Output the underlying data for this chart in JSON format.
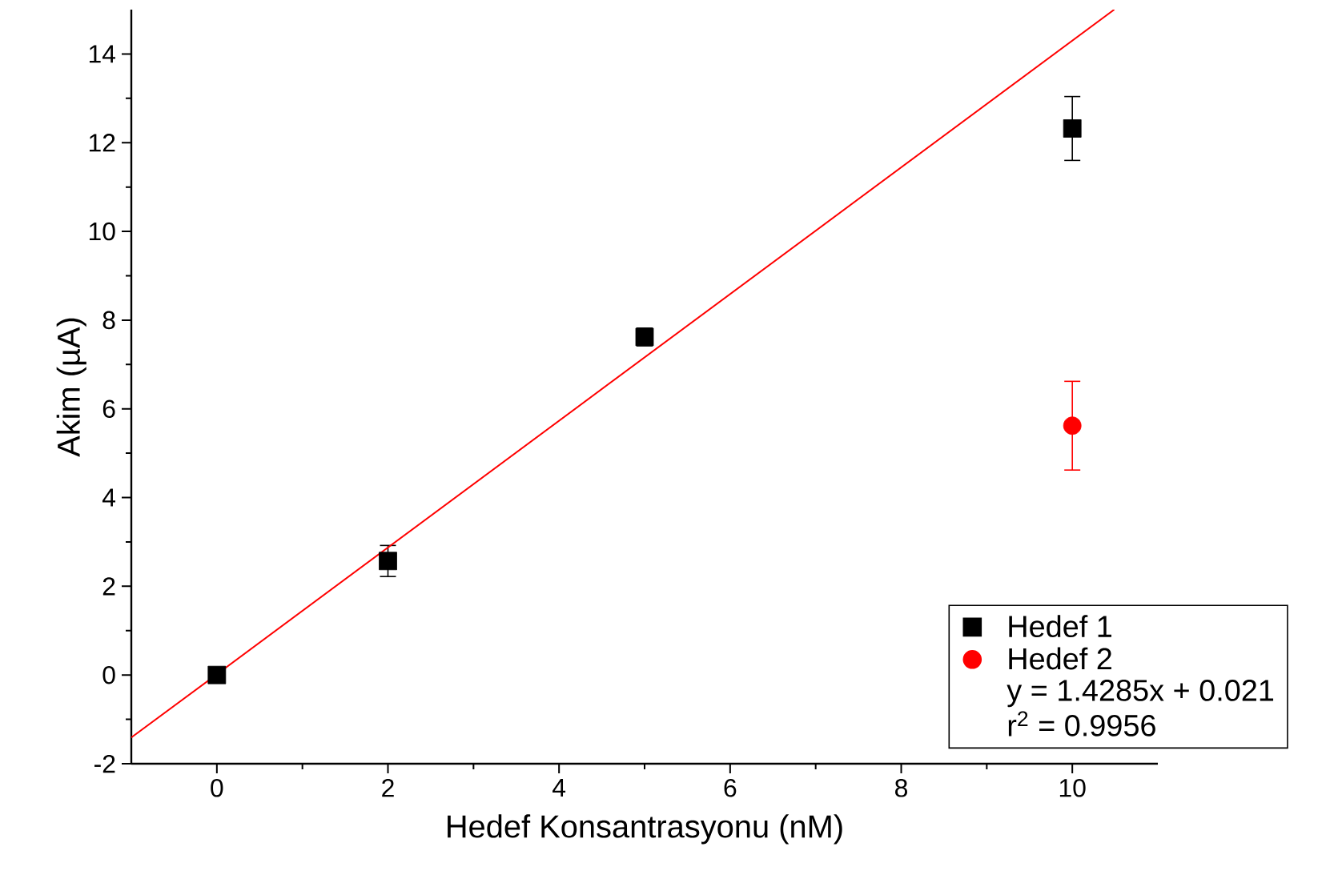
{
  "chart_data": {
    "type": "scatter",
    "xlabel": "Hedef Konsantrasyonu (nM)",
    "ylabel": "Akim (µA)",
    "xlim": [
      -1,
      11
    ],
    "ylim": [
      -2,
      15
    ],
    "xticks": [
      0,
      2,
      4,
      6,
      8,
      10
    ],
    "yticks": [
      -2,
      0,
      2,
      4,
      6,
      8,
      10,
      12,
      14
    ],
    "legend": "bottom right",
    "grid": false,
    "series": [
      {
        "name": "Hedef 1",
        "marker": "square",
        "color": "#000000",
        "x": [
          0,
          2,
          5,
          10
        ],
        "values": [
          0,
          2.57,
          7.62,
          12.32
        ],
        "errors": [
          null,
          0.35,
          0.2,
          0.72
        ]
      },
      {
        "name": "Hedef 2",
        "marker": "circle",
        "color": "#ff0000",
        "x": [
          10
        ],
        "values": [
          5.62
        ],
        "errors": [
          1.0
        ]
      },
      {
        "type": "line",
        "color": "#ff0000",
        "marker": "none",
        "x": [
          -1,
          10.49
        ],
        "values": [
          -1.41,
          15
        ]
      }
    ],
    "annotations": [
      "y = 1.4285x + 0.021",
      "r$^{2}$ = 0.9956"
    ]
  }
}
